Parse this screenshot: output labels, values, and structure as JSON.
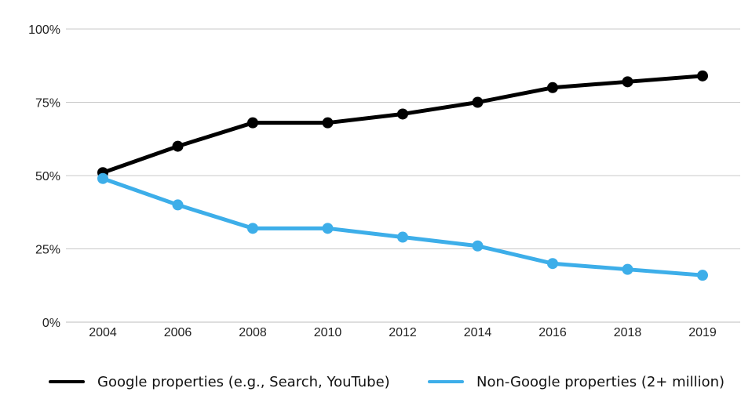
{
  "chart_data": {
    "type": "line",
    "x": [
      "2004",
      "2006",
      "2008",
      "2010",
      "2012",
      "2014",
      "2016",
      "2018",
      "2019"
    ],
    "series": [
      {
        "name": "Google properties (e.g., Search, YouTube)",
        "values": [
          51,
          60,
          68,
          68,
          71,
          75,
          80,
          82,
          84
        ],
        "color": "#000000"
      },
      {
        "name": "Non-Google properties (2+ million)",
        "values": [
          49,
          40,
          32,
          32,
          29,
          26,
          20,
          18,
          16
        ],
        "color": "#3daee9"
      }
    ],
    "y_ticks": [
      {
        "value": 0,
        "label": "0%"
      },
      {
        "value": 25,
        "label": "25%"
      },
      {
        "value": 50,
        "label": "50%"
      },
      {
        "value": 75,
        "label": "75%"
      },
      {
        "value": 100,
        "label": "100%"
      }
    ],
    "ylim": [
      0,
      100
    ],
    "title": "",
    "xlabel": "",
    "ylabel": "",
    "grid": true,
    "legend_position": "bottom"
  }
}
